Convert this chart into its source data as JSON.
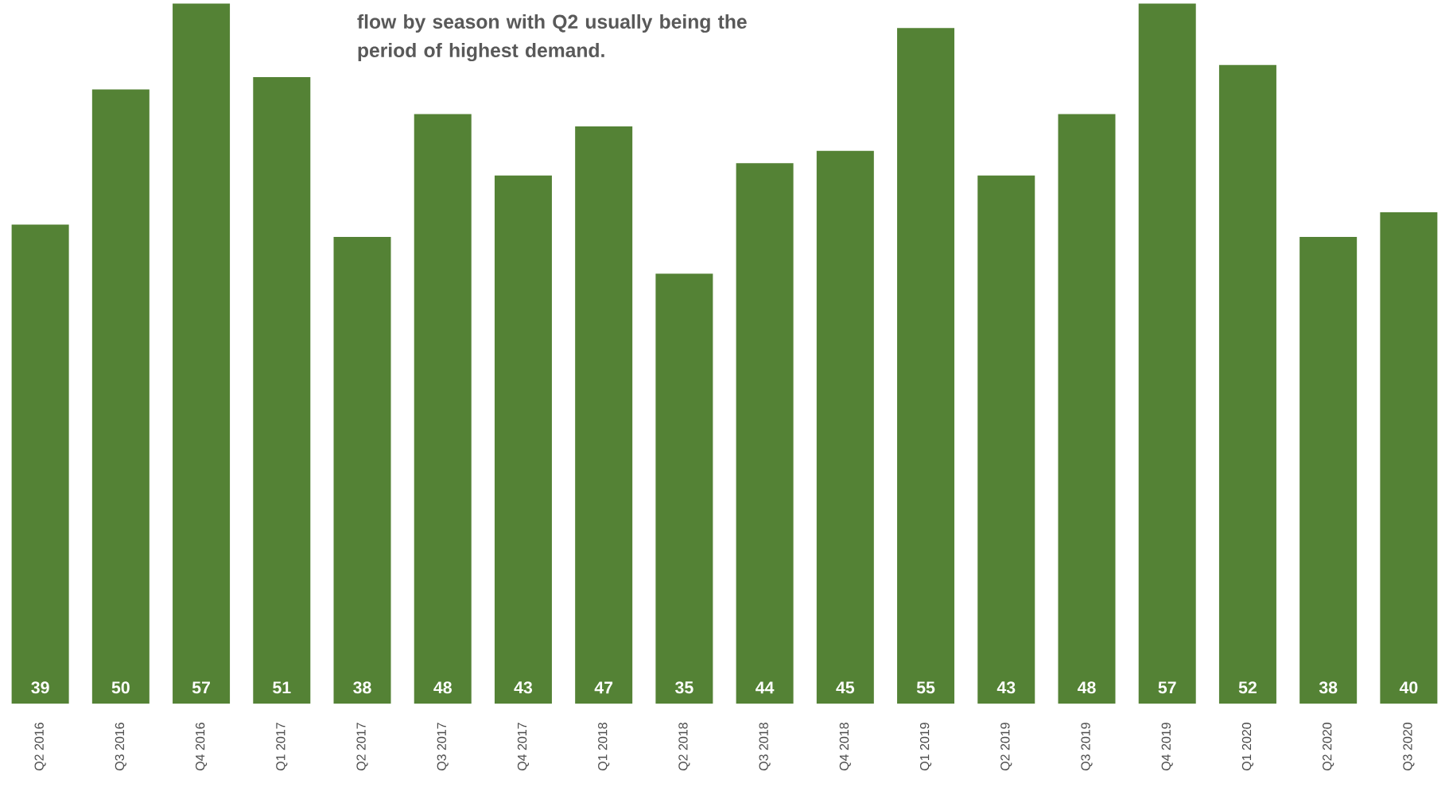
{
  "chart_data": {
    "type": "bar",
    "categories": [
      "Q2 2016",
      "Q3 2016",
      "Q4 2016",
      "Q1 2017",
      "Q2 2017",
      "Q3 2017",
      "Q4 2017",
      "Q1 2018",
      "Q2 2018",
      "Q3 2018",
      "Q4 2018",
      "Q1 2019",
      "Q2 2019",
      "Q3 2019",
      "Q4 2019",
      "Q1 2020",
      "Q2 2020",
      "Q3 2020"
    ],
    "values": [
      39,
      50,
      57,
      51,
      38,
      48,
      43,
      47,
      35,
      44,
      45,
      55,
      43,
      48,
      57,
      52,
      38,
      40
    ],
    "color": "#548235",
    "tick_labels": "x",
    "data_labels": true,
    "annotations": [
      "flow by season with Q2 usually being the period of highest demand."
    ]
  }
}
